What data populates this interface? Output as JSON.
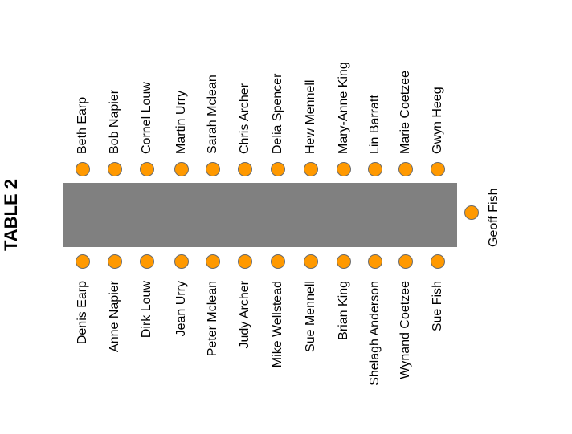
{
  "title": "TABLE 2",
  "colors": {
    "seat": "#FF9900",
    "table": "#808080"
  },
  "top_seats": [
    "Beth Earp",
    "Bob Napier",
    "Cornel Louw",
    "Martin Urry",
    "Sarah Mclean",
    "Chris Archer",
    "Delia Spencer",
    "Hew Mennell",
    "Mary-Anne King",
    "Lin Barratt",
    "Marie Coetzee",
    "Gwyn Heeg"
  ],
  "bottom_seats": [
    "Denis Earp",
    "Anne Napier",
    "Dirk Louw",
    "Jean Urry",
    "Peter Mclean",
    "Judy Archer",
    "Mike Wellstead",
    "Sue Mennell",
    "Brian King",
    "Shelagh Anderson",
    "Wynand Coetzee",
    "Sue Fish"
  ],
  "head_seat": "Geoff Fish"
}
